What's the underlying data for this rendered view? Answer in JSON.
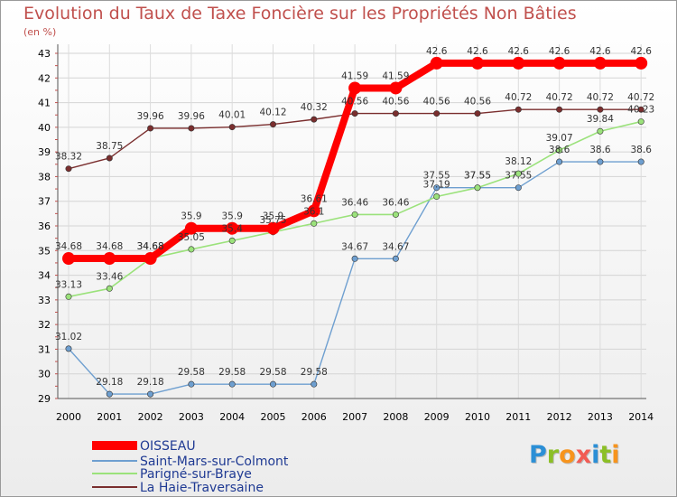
{
  "title": "Evolution du Taux de Taxe Foncière sur les Propriétés Non Bâties",
  "subtitle": "(en %)",
  "logo": {
    "text": "Proxiti",
    "colors": [
      "#2b8fd6",
      "#8cbf26",
      "#f7941d",
      "#f25c54",
      "#2b8fd6",
      "#8cbf26",
      "#f7941d"
    ]
  },
  "chart_data": {
    "type": "line",
    "title": "Evolution du Taux de Taxe Foncière sur les Propriétés Non Bâties",
    "ylabel": "(en %)",
    "xlabel": "",
    "ylim": [
      29,
      43
    ],
    "yticks": [
      29,
      30,
      31,
      32,
      33,
      34,
      35,
      36,
      37,
      38,
      39,
      40,
      41,
      42,
      43
    ],
    "x": [
      "2000",
      "2001",
      "2002",
      "2003",
      "2004",
      "2005",
      "2006",
      "2007",
      "2008",
      "2009",
      "2010",
      "2011",
      "2012",
      "2013",
      "2014"
    ],
    "grid": true,
    "legend": "bottom-left",
    "series": [
      {
        "name": "OISSEAU",
        "color": "#ff0000",
        "values": [
          34.68,
          34.68,
          34.68,
          35.9,
          35.9,
          35.9,
          36.61,
          41.59,
          41.59,
          42.6,
          42.6,
          42.6,
          42.6,
          42.6,
          42.6
        ],
        "labels": [
          "34.68",
          "34.68",
          "34.68",
          "35.9",
          "35.9",
          "35.9",
          "36.61",
          "41.59",
          "41.59",
          "42.6",
          "42.6",
          "42.6",
          "42.6",
          "42.6",
          "42.6"
        ]
      },
      {
        "name": "Saint-Mars-sur-Colmont",
        "color": "#6e9fd0",
        "values": [
          31.02,
          29.18,
          29.18,
          29.58,
          29.58,
          29.58,
          29.58,
          34.67,
          34.67,
          37.55,
          37.55,
          37.55,
          38.6,
          38.6,
          38.6
        ],
        "labels": [
          "31.02",
          "29.18",
          "29.18",
          "29.58",
          "29.58",
          "29.58",
          "29.58",
          "34.67",
          "34.67",
          "37.55",
          "37.55",
          "37.55",
          "38.6",
          "38.6",
          "38.6"
        ]
      },
      {
        "name": "Parigné-sur-Braye",
        "color": "#9be27b",
        "values": [
          33.13,
          33.46,
          34.68,
          35.05,
          35.4,
          35.75,
          36.1,
          36.46,
          36.46,
          37.19,
          37.55,
          38.12,
          39.07,
          39.84,
          40.23
        ],
        "labels": [
          "33.13",
          "33.46",
          "34.68",
          "35.05",
          "35.4",
          "35.75",
          "36.1",
          "36.46",
          "36.46",
          "37.19",
          "37.55",
          "38.12",
          "39.07",
          "39.84",
          "40.23"
        ]
      },
      {
        "name": "La Haie-Traversaine",
        "color": "#7a2e2e",
        "values": [
          38.32,
          38.75,
          39.96,
          39.96,
          40.01,
          40.12,
          40.32,
          40.56,
          40.56,
          40.56,
          40.56,
          40.72,
          40.72,
          40.72,
          40.72
        ],
        "labels": [
          "38.32",
          "38.75",
          "39.96",
          "39.96",
          "40.01",
          "40.12",
          "40.32",
          "40.56",
          "40.56",
          "40.56",
          "40.56",
          "40.72",
          "40.72",
          "40.72",
          "40.72"
        ]
      }
    ]
  }
}
